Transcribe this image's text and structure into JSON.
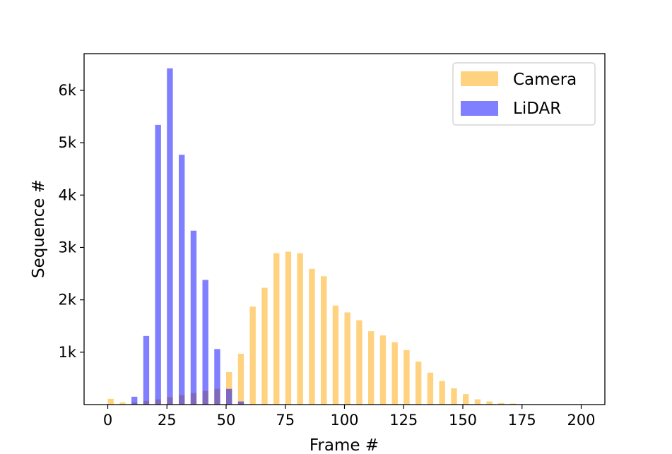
{
  "chart_data": {
    "type": "bar",
    "xlabel": "Frame #",
    "ylabel": "Sequence #",
    "xlim": [
      -10,
      210
    ],
    "ylim": [
      0,
      6700
    ],
    "bin_width": 2.5,
    "xticks": [
      0,
      25,
      50,
      75,
      100,
      125,
      150,
      175,
      200
    ],
    "xtick_labels": [
      "0",
      "25",
      "50",
      "75",
      "100",
      "125",
      "150",
      "175",
      "200"
    ],
    "yticks": [
      1000,
      2000,
      3000,
      4000,
      5000,
      6000
    ],
    "ytick_labels": [
      "1k",
      "2k",
      "3k",
      "4k",
      "5k",
      "6k"
    ],
    "grid": false,
    "legend_position": "top-right",
    "series": [
      {
        "name": "Camera",
        "color": "#FFA500",
        "opacity": 0.5,
        "x": [
          0,
          5,
          10,
          15,
          20,
          25,
          30,
          35,
          40,
          45,
          50,
          55,
          60,
          65,
          70,
          75,
          80,
          85,
          90,
          95,
          100,
          105,
          110,
          115,
          120,
          125,
          130,
          135,
          140,
          145,
          150,
          155,
          160,
          165,
          170
        ],
        "values": [
          110,
          40,
          40,
          70,
          100,
          140,
          180,
          220,
          260,
          300,
          620,
          970,
          1870,
          2230,
          2890,
          2920,
          2890,
          2590,
          2450,
          1890,
          1760,
          1610,
          1400,
          1320,
          1190,
          1040,
          820,
          610,
          450,
          310,
          200,
          100,
          60,
          30,
          20
        ]
      },
      {
        "name": "LiDAR",
        "color": "#0000FF",
        "opacity": 0.5,
        "x": [
          10,
          15,
          20,
          25,
          30,
          35,
          40,
          45,
          50,
          55
        ],
        "values": [
          150,
          1310,
          5340,
          6420,
          4770,
          3320,
          2380,
          1060,
          300,
          60
        ]
      }
    ]
  }
}
